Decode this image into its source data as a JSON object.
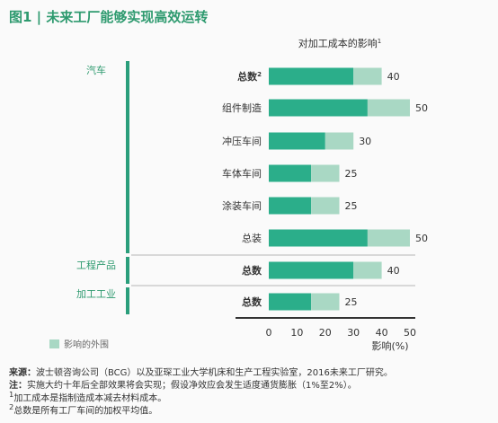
{
  "figure": {
    "label": "图1",
    "title": "未来工厂能够实现高效运转"
  },
  "chart_data": {
    "type": "bar",
    "orientation": "horizontal",
    "stacked": true,
    "title": "对加工成本的影响",
    "title_sup": "1",
    "xlabel": "影响(%)",
    "xlim": [
      0,
      50
    ],
    "xticks": [
      0,
      10,
      20,
      30,
      40,
      50
    ],
    "groups": [
      {
        "label": "汽车",
        "rows": [
          0,
          1,
          2,
          3,
          4,
          5
        ]
      },
      {
        "label": "工程产品",
        "rows": [
          6
        ]
      },
      {
        "label": "加工工业",
        "rows": [
          7
        ]
      }
    ],
    "categories": [
      "总数",
      "组件制造",
      "冲压车间",
      "车体车间",
      "涂装车间",
      "总装",
      "总数",
      "总数"
    ],
    "category_sup": [
      "2",
      "",
      "",
      "",
      "",
      "",
      "",
      ""
    ],
    "category_bold": [
      true,
      false,
      false,
      false,
      false,
      false,
      true,
      true
    ],
    "series": [
      {
        "values": [
          30,
          35,
          20,
          15,
          15,
          35,
          30,
          15
        ],
        "color": "#2bae8a"
      },
      {
        "name": "影响的外围",
        "values": [
          10,
          15,
          10,
          10,
          10,
          15,
          10,
          10
        ],
        "color": "#a9d8c4"
      }
    ],
    "totals": [
      40,
      50,
      30,
      25,
      25,
      50,
      40,
      25
    ],
    "legend_position": "bottom-left"
  },
  "colors": {
    "title_green": "#2e9a6f",
    "group_line": "#2a9e7b",
    "separator": "#b5b5b5",
    "axis": "#333333"
  },
  "source": {
    "label": "来源：",
    "text": "波士顿咨询公司（BCG）以及亚琛工业大学机床和生产工程实验室，2016未来工厂研究。"
  },
  "note": {
    "label": "注：",
    "text": "实施大约十年后全部效果将会实现；假设净效应会发生适度通货膨胀（1%至2%）。"
  },
  "footnotes": [
    {
      "mark": "1",
      "text": "加工成本是指制造成本减去材料成本。"
    },
    {
      "mark": "2",
      "text": "总数是所有工厂车间的加权平均值。"
    }
  ]
}
